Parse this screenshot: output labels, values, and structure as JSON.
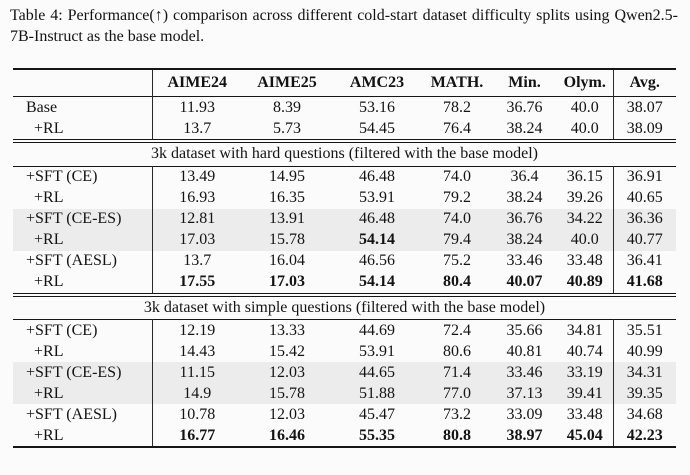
{
  "caption": "Table 4: Performance(↑) comparison across different cold-start dataset difficulty splits using Qwen2.5-7B-Instruct as the base model.",
  "table": {
    "columns": [
      "",
      "AIME24",
      "AIME25",
      "AMC23",
      "MATH.",
      "Min.",
      "Olym.",
      "Avg."
    ],
    "top_rows": [
      {
        "label": "Base",
        "indent": 1,
        "shaded": false,
        "bold": [],
        "values": [
          "11.93",
          "8.39",
          "53.16",
          "78.2",
          "36.76",
          "40.0",
          "38.07"
        ]
      },
      {
        "label": "+RL",
        "indent": 2,
        "shaded": false,
        "bold": [],
        "values": [
          "13.7",
          "5.73",
          "54.45",
          "76.4",
          "38.24",
          "40.0",
          "38.09"
        ]
      }
    ],
    "sections": [
      {
        "title": "3k dataset with hard questions (filtered with the base model)",
        "rows": [
          {
            "label": "+SFT (CE)",
            "indent": 1,
            "shaded": false,
            "bold": [],
            "values": [
              "13.49",
              "14.95",
              "46.48",
              "74.0",
              "36.4",
              "36.15",
              "36.91"
            ]
          },
          {
            "label": "+RL",
            "indent": 2,
            "shaded": false,
            "bold": [],
            "values": [
              "16.93",
              "16.35",
              "53.91",
              "79.2",
              "38.24",
              "39.26",
              "40.65"
            ]
          },
          {
            "label": "+SFT (CE-ES)",
            "indent": 1,
            "shaded": true,
            "bold": [],
            "values": [
              "12.81",
              "13.91",
              "46.48",
              "74.0",
              "36.76",
              "34.22",
              "36.36"
            ]
          },
          {
            "label": "+RL",
            "indent": 2,
            "shaded": true,
            "bold": [
              2
            ],
            "values": [
              "17.03",
              "15.78",
              "54.14",
              "79.4",
              "38.24",
              "40.0",
              "40.77"
            ]
          },
          {
            "label": "+SFT (AESL)",
            "indent": 1,
            "shaded": false,
            "bold": [],
            "values": [
              "13.7",
              "16.04",
              "46.56",
              "75.2",
              "33.46",
              "33.48",
              "36.41"
            ]
          },
          {
            "label": "+RL",
            "indent": 2,
            "shaded": false,
            "bold": [
              0,
              1,
              2,
              3,
              4,
              5,
              6
            ],
            "values": [
              "17.55",
              "17.03",
              "54.14",
              "80.4",
              "40.07",
              "40.89",
              "41.68"
            ]
          }
        ]
      },
      {
        "title": "3k dataset with simple questions (filtered with the base model)",
        "rows": [
          {
            "label": "+SFT (CE)",
            "indent": 1,
            "shaded": false,
            "bold": [],
            "values": [
              "12.19",
              "13.33",
              "44.69",
              "72.4",
              "35.66",
              "34.81",
              "35.51"
            ]
          },
          {
            "label": "+RL",
            "indent": 2,
            "shaded": false,
            "bold": [],
            "values": [
              "14.43",
              "15.42",
              "53.91",
              "80.6",
              "40.81",
              "40.74",
              "40.99"
            ]
          },
          {
            "label": "+SFT (CE-ES)",
            "indent": 1,
            "shaded": true,
            "bold": [],
            "values": [
              "11.15",
              "12.03",
              "44.65",
              "71.4",
              "33.46",
              "33.19",
              "34.31"
            ]
          },
          {
            "label": "+RL",
            "indent": 2,
            "shaded": true,
            "bold": [],
            "values": [
              "14.9",
              "15.78",
              "51.88",
              "77.0",
              "37.13",
              "39.41",
              "39.35"
            ]
          },
          {
            "label": "+SFT (AESL)",
            "indent": 1,
            "shaded": false,
            "bold": [],
            "values": [
              "10.78",
              "12.03",
              "45.47",
              "73.2",
              "33.09",
              "33.48",
              "34.68"
            ]
          },
          {
            "label": "+RL",
            "indent": 2,
            "shaded": false,
            "bold": [
              0,
              1,
              2,
              3,
              4,
              5,
              6
            ],
            "values": [
              "16.77",
              "16.46",
              "55.35",
              "80.8",
              "38.97",
              "45.04",
              "42.23"
            ]
          }
        ]
      }
    ]
  }
}
